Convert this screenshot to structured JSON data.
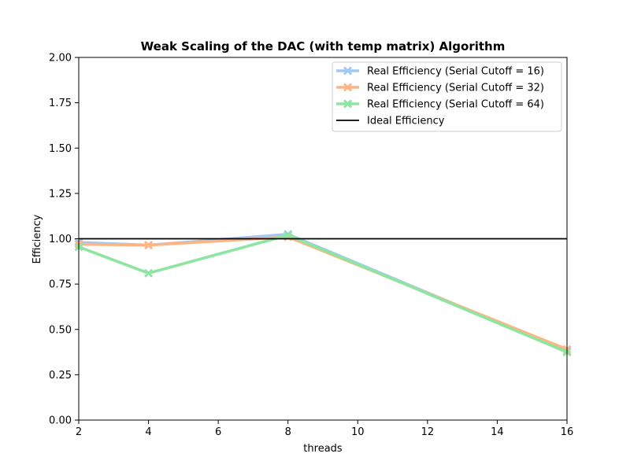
{
  "chart_data": {
    "type": "line",
    "title": "Weak Scaling of the DAC (with temp matrix) Algorithm",
    "xlabel": "threads",
    "ylabel": "Efficiency",
    "xlim": [
      2,
      16
    ],
    "ylim": [
      0,
      2
    ],
    "xticks": [
      2,
      4,
      6,
      8,
      10,
      12,
      14,
      16
    ],
    "yticks": [
      "0.00",
      "0.25",
      "0.50",
      "0.75",
      "1.00",
      "1.25",
      "1.50",
      "1.75",
      "2.00"
    ],
    "legend_position": "top-right",
    "series": [
      {
        "name": "Real Efficiency (Serial Cutoff = 16)",
        "color": "#a1c9f4",
        "marker": "x",
        "x": [
          2,
          4,
          8,
          16
        ],
        "values": [
          0.98,
          0.965,
          1.025,
          0.38
        ]
      },
      {
        "name": "Real Efficiency (Serial Cutoff = 32)",
        "color": "#ffb482",
        "marker": "x",
        "x": [
          2,
          4,
          8,
          16
        ],
        "values": [
          0.97,
          0.965,
          1.01,
          0.39
        ]
      },
      {
        "name": "Real Efficiency (Serial Cutoff = 64)",
        "color": "#8de5a1",
        "marker": "x",
        "x": [
          2,
          4,
          8,
          16
        ],
        "values": [
          0.955,
          0.81,
          1.02,
          0.375
        ]
      },
      {
        "name": "Ideal Efficiency",
        "color": "#000000",
        "marker": "none",
        "x": [
          2,
          16
        ],
        "values": [
          1.0,
          1.0
        ]
      }
    ]
  }
}
